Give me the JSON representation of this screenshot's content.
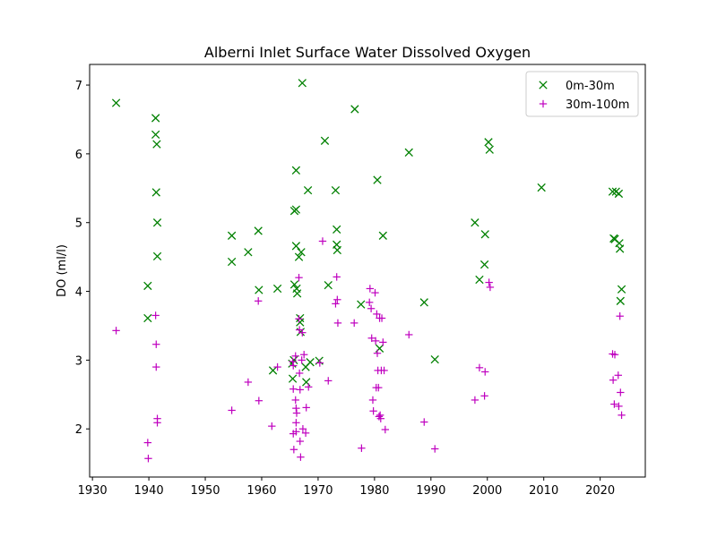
{
  "chart_data": {
    "type": "scatter",
    "title": "Alberni Inlet Surface Water Dissolved Oxygen",
    "xlabel": "",
    "ylabel": "DO (ml/l)",
    "xlim": [
      1929.5,
      2028
    ],
    "ylim": [
      1.3,
      7.3
    ],
    "xticks": [
      1930,
      1940,
      1950,
      1960,
      1970,
      1980,
      1990,
      2000,
      2010,
      2020
    ],
    "yticks": [
      2,
      3,
      4,
      5,
      6,
      7
    ],
    "grid": false,
    "legend_position": "upper right",
    "series": [
      {
        "name": "0m-30m",
        "marker": "x",
        "color": "#008000",
        "points": [
          [
            1934.2,
            6.74
          ],
          [
            1939.8,
            4.08
          ],
          [
            1939.8,
            3.61
          ],
          [
            1941.2,
            6.52
          ],
          [
            1941.2,
            6.28
          ],
          [
            1941.4,
            6.14
          ],
          [
            1941.3,
            5.44
          ],
          [
            1941.5,
            5.0
          ],
          [
            1941.5,
            4.51
          ],
          [
            1954.7,
            4.81
          ],
          [
            1954.7,
            4.43
          ],
          [
            1957.6,
            4.57
          ],
          [
            1959.4,
            4.88
          ],
          [
            1959.5,
            4.02
          ],
          [
            1962.0,
            2.85
          ],
          [
            1962.8,
            4.04
          ],
          [
            1965.4,
            2.95
          ],
          [
            1965.5,
            2.73
          ],
          [
            1965.7,
            3.0
          ],
          [
            1965.8,
            4.1
          ],
          [
            1965.8,
            5.17
          ],
          [
            1966.1,
            5.19
          ],
          [
            1966.1,
            4.66
          ],
          [
            1966.1,
            5.76
          ],
          [
            1966.2,
            4.04
          ],
          [
            1966.3,
            3.97
          ],
          [
            1966.6,
            4.5
          ],
          [
            1966.8,
            3.61
          ],
          [
            1966.8,
            3.55
          ],
          [
            1966.9,
            3.41
          ],
          [
            1967.0,
            4.57
          ],
          [
            1967.2,
            7.03
          ],
          [
            1967.8,
            2.9
          ],
          [
            1967.9,
            2.68
          ],
          [
            1968.2,
            5.47
          ],
          [
            1968.6,
            2.97
          ],
          [
            1970.2,
            2.99
          ],
          [
            1971.2,
            6.19
          ],
          [
            1971.8,
            4.09
          ],
          [
            1973.1,
            5.47
          ],
          [
            1973.3,
            4.9
          ],
          [
            1973.3,
            4.68
          ],
          [
            1973.4,
            4.6
          ],
          [
            1976.5,
            6.65
          ],
          [
            1977.6,
            3.81
          ],
          [
            1980.5,
            5.62
          ],
          [
            1980.9,
            3.17
          ],
          [
            1981.5,
            4.81
          ],
          [
            1986.1,
            6.02
          ],
          [
            1988.8,
            3.84
          ],
          [
            1990.7,
            3.01
          ],
          [
            1997.8,
            5.0
          ],
          [
            1998.6,
            4.17
          ],
          [
            1999.5,
            4.39
          ],
          [
            1999.6,
            4.83
          ],
          [
            2000.2,
            6.17
          ],
          [
            2000.4,
            6.06
          ],
          [
            2009.6,
            5.51
          ],
          [
            2022.2,
            5.45
          ],
          [
            2022.4,
            4.77
          ],
          [
            2022.6,
            4.76
          ],
          [
            2022.8,
            5.45
          ],
          [
            2023.3,
            5.42
          ],
          [
            2023.4,
            4.7
          ],
          [
            2023.5,
            4.62
          ],
          [
            2023.6,
            3.86
          ],
          [
            2023.8,
            4.03
          ]
        ]
      },
      {
        "name": "30m-100m",
        "marker": "+",
        "color": "#bf00bf",
        "points": [
          [
            1934.2,
            3.43
          ],
          [
            1939.8,
            1.8
          ],
          [
            1939.9,
            1.57
          ],
          [
            1941.2,
            3.65
          ],
          [
            1941.3,
            3.23
          ],
          [
            1941.3,
            2.9
          ],
          [
            1941.5,
            2.15
          ],
          [
            1941.5,
            2.09
          ],
          [
            1954.7,
            2.27
          ],
          [
            1957.6,
            2.68
          ],
          [
            1959.4,
            3.86
          ],
          [
            1959.5,
            2.41
          ],
          [
            1961.8,
            2.04
          ],
          [
            1962.8,
            2.9
          ],
          [
            1965.5,
            2.98
          ],
          [
            1965.6,
            2.92
          ],
          [
            1965.6,
            2.58
          ],
          [
            1965.6,
            1.93
          ],
          [
            1965.7,
            1.7
          ],
          [
            1966.0,
            3.06
          ],
          [
            1966.0,
            2.42
          ],
          [
            1966.1,
            2.3
          ],
          [
            1966.1,
            2.09
          ],
          [
            1966.1,
            1.96
          ],
          [
            1966.2,
            2.23
          ],
          [
            1966.6,
            4.2
          ],
          [
            1966.6,
            3.6
          ],
          [
            1966.7,
            3.44
          ],
          [
            1966.7,
            2.81
          ],
          [
            1966.8,
            2.57
          ],
          [
            1966.8,
            1.82
          ],
          [
            1966.9,
            1.59
          ],
          [
            1967.1,
            3.0
          ],
          [
            1967.2,
            3.4
          ],
          [
            1967.3,
            2.0
          ],
          [
            1967.5,
            3.08
          ],
          [
            1967.8,
            1.94
          ],
          [
            1967.9,
            2.31
          ],
          [
            1968.3,
            2.61
          ],
          [
            1970.3,
            2.96
          ],
          [
            1970.8,
            4.73
          ],
          [
            1971.8,
            2.7
          ],
          [
            1973.1,
            3.82
          ],
          [
            1973.3,
            4.21
          ],
          [
            1973.4,
            3.88
          ],
          [
            1973.5,
            3.54
          ],
          [
            1976.4,
            3.54
          ],
          [
            1977.7,
            1.72
          ],
          [
            1979.1,
            3.84
          ],
          [
            1979.2,
            4.04
          ],
          [
            1979.4,
            3.75
          ],
          [
            1979.5,
            3.32
          ],
          [
            1979.7,
            2.42
          ],
          [
            1979.8,
            2.26
          ],
          [
            1980.1,
            3.98
          ],
          [
            1980.2,
            3.28
          ],
          [
            1980.3,
            2.6
          ],
          [
            1980.4,
            3.67
          ],
          [
            1980.5,
            3.1
          ],
          [
            1980.6,
            2.85
          ],
          [
            1980.7,
            2.6
          ],
          [
            1980.8,
            2.18
          ],
          [
            1980.9,
            3.61
          ],
          [
            1981.0,
            2.2
          ],
          [
            1981.1,
            2.15
          ],
          [
            1981.2,
            2.85
          ],
          [
            1981.3,
            3.61
          ],
          [
            1981.5,
            3.26
          ],
          [
            1981.7,
            2.85
          ],
          [
            1981.9,
            1.99
          ],
          [
            1986.1,
            3.37
          ],
          [
            1988.8,
            2.1
          ],
          [
            1990.7,
            1.71
          ],
          [
            1997.8,
            2.42
          ],
          [
            1998.6,
            2.89
          ],
          [
            1999.5,
            2.48
          ],
          [
            1999.6,
            2.83
          ],
          [
            2000.3,
            4.13
          ],
          [
            2000.5,
            4.06
          ],
          [
            2022.2,
            3.09
          ],
          [
            2022.3,
            2.71
          ],
          [
            2022.5,
            2.36
          ],
          [
            2022.6,
            3.08
          ],
          [
            2023.2,
            2.78
          ],
          [
            2023.3,
            2.33
          ],
          [
            2023.5,
            3.64
          ],
          [
            2023.6,
            2.53
          ],
          [
            2023.8,
            2.2
          ]
        ]
      }
    ]
  }
}
